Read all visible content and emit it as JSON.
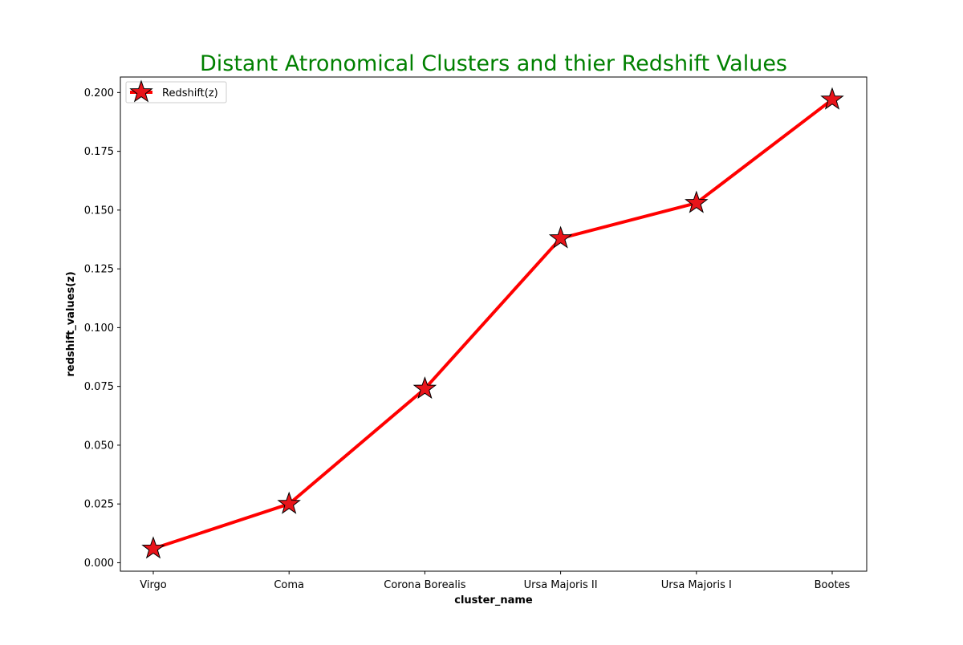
{
  "chart_data": {
    "type": "line",
    "title": "Distant Atronomical Clusters and thier Redshift Values",
    "title_color": "#008000",
    "xlabel": "cluster_name",
    "ylabel": "redshift_values(z)",
    "categories": [
      "Virgo",
      "Coma",
      "Corona Borealis",
      "Ursa Majoris II",
      "Ursa Majoris I",
      "Bootes"
    ],
    "series": [
      {
        "name": "Redshift(z)",
        "values": [
          0.006,
          0.025,
          0.074,
          0.138,
          0.153,
          0.197
        ],
        "color": "#ff0000",
        "marker": "star",
        "marker_edge_color": "#000000",
        "marker_face_color": "#e8141a"
      }
    ],
    "ylim": [
      -0.0036,
      0.2066
    ],
    "yticks": [
      0.0,
      0.025,
      0.05,
      0.075,
      0.1,
      0.125,
      0.15,
      0.175,
      0.2
    ],
    "ytick_labels": [
      "0.000",
      "0.025",
      "0.050",
      "0.075",
      "0.100",
      "0.125",
      "0.150",
      "0.175",
      "0.200"
    ],
    "grid": false,
    "legend_position": "top-left"
  }
}
